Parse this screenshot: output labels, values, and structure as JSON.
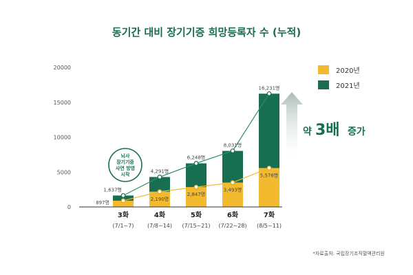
{
  "chart_data": {
    "type": "bar",
    "title": "동기간 대비 장기기증 희망등록자 수 (누적)",
    "categories": [
      "3화",
      "4화",
      "5화",
      "6화",
      "7화"
    ],
    "category_dates": [
      "(7/1~7)",
      "(7/8~14)",
      "(7/15~21)",
      "(7/22~28)",
      "(8/5~11)"
    ],
    "series": [
      {
        "name": "2020년",
        "color": "#f3b92f",
        "values": [
          897,
          2190,
          2847,
          3493,
          5576
        ],
        "labels": [
          "897명",
          "2,190명",
          "2,847명",
          "3,493명",
          "5,576명"
        ]
      },
      {
        "name": "2021년",
        "color": "#176e51",
        "values": [
          1637,
          4291,
          6248,
          8031,
          16231
        ],
        "labels": [
          "1,637명",
          "4,291명",
          "6,248명",
          "8,031명",
          "16,231명"
        ]
      }
    ],
    "ylim": [
      0,
      20000
    ],
    "yticks": [
      "0",
      "5000",
      "10000",
      "15000",
      "20000"
    ],
    "legend_position": "top-right",
    "callout": {
      "line1": "뇌사",
      "line2": "장기기증",
      "line3": "사연 방영",
      "line4": "시작"
    },
    "increase_text": {
      "prefix": "약",
      "value": "3배",
      "suffix": "증가"
    },
    "source": "*자료출처: 국립장기조직혈액관리원"
  }
}
